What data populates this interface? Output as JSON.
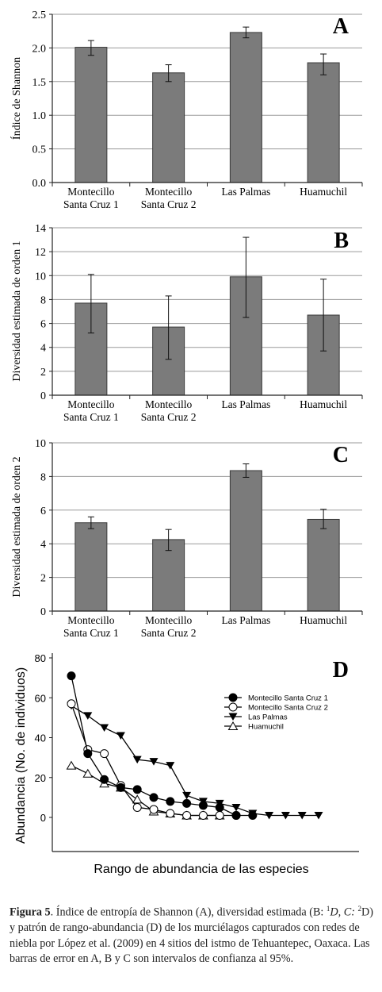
{
  "panels": [
    {
      "letter": "A",
      "ylabel": "Índice de Shannon",
      "yticks": [
        "0.0",
        "0.5",
        "1.0",
        "1.5",
        "2.0",
        "2.5"
      ]
    },
    {
      "letter": "B",
      "ylabel": "Diversidad estimada de orden 1",
      "yticks": [
        "0",
        "2",
        "4",
        "6",
        "8",
        "10",
        "12",
        "14"
      ]
    },
    {
      "letter": "C",
      "ylabel": "Diversidad estimada de orden 2",
      "yticks": [
        "0",
        "2",
        "4",
        "6",
        "8",
        "10"
      ]
    }
  ],
  "categories": [
    {
      "line1": "Montecillo",
      "line2": "Santa Cruz 1"
    },
    {
      "line1": "Montecillo",
      "line2": "Santa Cruz 2"
    },
    {
      "line1": "Las Palmas",
      "line2": ""
    },
    {
      "line1": "Huamuchil",
      "line2": ""
    }
  ],
  "panelD": {
    "letter": "D",
    "ylabel": "Abundancia (No. de individuos)",
    "xlabel": "Rango de abundancia de las especies",
    "yticks": [
      "0",
      "20",
      "40",
      "60",
      "80"
    ],
    "legend": [
      "Montecillo Santa Cruz 1",
      "Montecillo Santa Cruz 2",
      "Las Palmas",
      "Huamuchil"
    ]
  },
  "caption": {
    "bold": "Figura 5",
    "pre": ". Índice de entropía de Shannon (A), diversidad estimada (B: ",
    "b_sup": "1",
    "mid": "D, C: ",
    "c_sup": "2",
    "post": "D) y patrón de rango-abundancia (D) de los murciélagos capturados con redes de niebla por López et al. (2009) en 4 sitios del istmo de Tehuantepec, Oaxaca. Las barras de error en A, B y C son intervalos de confianza al 95%."
  },
  "chart_data": [
    {
      "type": "bar",
      "panel": "A",
      "categories": [
        "Montecillo Santa Cruz 1",
        "Montecillo Santa Cruz 2",
        "Las Palmas",
        "Huamuchil"
      ],
      "values": [
        2.01,
        1.63,
        2.23,
        1.78
      ],
      "err_low": [
        1.89,
        1.5,
        2.15,
        1.6
      ],
      "err_high": [
        2.11,
        1.75,
        2.31,
        1.91
      ],
      "ylabel": "Índice de Shannon",
      "ylim": [
        0,
        2.5
      ],
      "grid": true
    },
    {
      "type": "bar",
      "panel": "B",
      "categories": [
        "Montecillo Santa Cruz 1",
        "Montecillo Santa Cruz 2",
        "Las Palmas",
        "Huamuchil"
      ],
      "values": [
        7.7,
        5.7,
        9.9,
        6.7
      ],
      "err_low": [
        5.2,
        3.0,
        6.5,
        3.7
      ],
      "err_high": [
        10.1,
        8.3,
        13.2,
        9.7
      ],
      "ylabel": "Diversidad estimada de orden 1",
      "ylim": [
        0,
        14
      ],
      "grid": true
    },
    {
      "type": "bar",
      "panel": "C",
      "categories": [
        "Montecillo Santa Cruz 1",
        "Montecillo Santa Cruz 2",
        "Las Palmas",
        "Huamuchil"
      ],
      "values": [
        5.25,
        4.25,
        8.35,
        5.45
      ],
      "err_low": [
        4.9,
        3.6,
        7.95,
        4.9
      ],
      "err_high": [
        5.6,
        4.85,
        8.75,
        6.05
      ],
      "ylabel": "Diversidad estimada de orden 2",
      "ylim": [
        0,
        10
      ],
      "grid": true
    },
    {
      "type": "line",
      "panel": "D",
      "xlabel": "Rango de abundancia de las especies",
      "ylabel": "Abundancia (No. de individuos)",
      "ylim": [
        0,
        80
      ],
      "legend_position": "top-right",
      "series": [
        {
          "name": "Montecillo Santa Cruz 1",
          "marker": "filled-circle",
          "x": [
            1,
            2,
            3,
            4,
            5,
            6,
            7,
            8,
            9,
            10,
            11,
            12
          ],
          "values": [
            71,
            32,
            19,
            15,
            14,
            10,
            8,
            7,
            6,
            5,
            1,
            1
          ]
        },
        {
          "name": "Montecillo Santa Cruz 2",
          "marker": "open-circle",
          "x": [
            1,
            2,
            3,
            4,
            5,
            6,
            7,
            8,
            9,
            10,
            11
          ],
          "values": [
            57,
            34,
            32,
            16,
            5,
            4,
            2,
            1,
            1,
            1,
            1
          ]
        },
        {
          "name": "Las Palmas",
          "marker": "filled-triangle-down",
          "x": [
            1,
            2,
            3,
            4,
            5,
            6,
            7,
            8,
            9,
            10,
            11,
            12,
            13,
            14,
            15,
            16
          ],
          "values": [
            56,
            51,
            45,
            41,
            29,
            28,
            26,
            11,
            8,
            7,
            5,
            2,
            1,
            1,
            1,
            1
          ]
        },
        {
          "name": "Huamuchil",
          "marker": "open-triangle-up",
          "x": [
            1,
            2,
            3,
            4,
            5,
            6,
            7,
            8,
            9,
            10
          ],
          "values": [
            26,
            22,
            17,
            15,
            9,
            3,
            2,
            1,
            1,
            1
          ]
        }
      ]
    }
  ]
}
